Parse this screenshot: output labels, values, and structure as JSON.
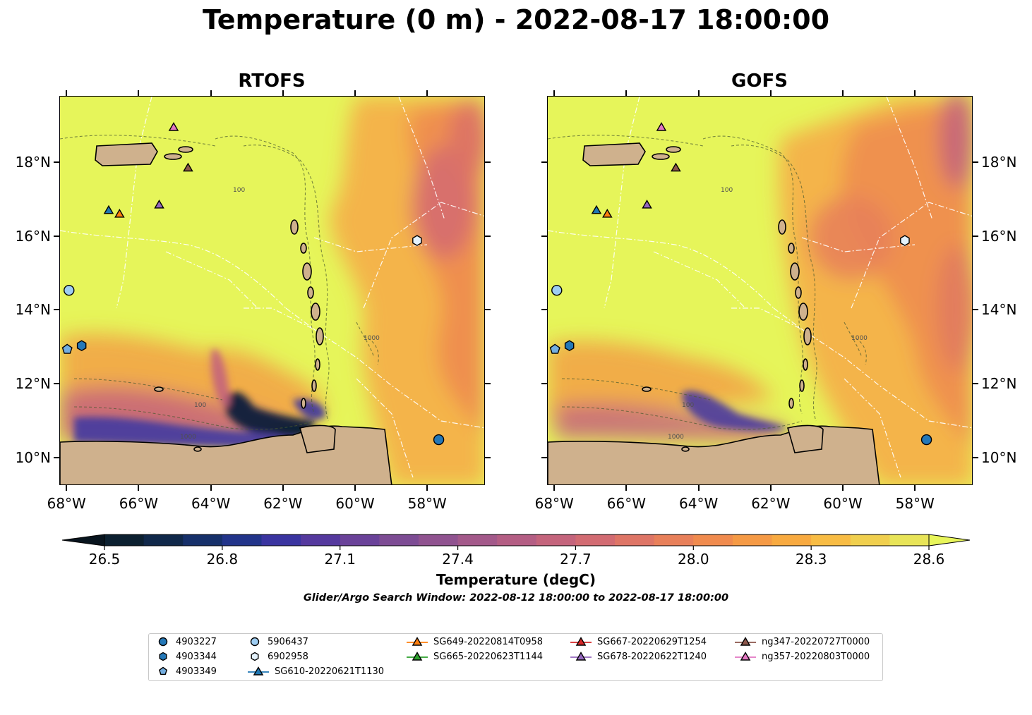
{
  "title": "Temperature (0 m) - 2022-08-17 18:00:00",
  "panels": [
    {
      "title": "RTOFS"
    },
    {
      "title": "GOFS"
    }
  ],
  "x_ticks": [
    "68°W",
    "66°W",
    "64°W",
    "62°W",
    "60°W",
    "58°W"
  ],
  "y_ticks": [
    "18°N",
    "16°N",
    "14°N",
    "12°N",
    "10°N"
  ],
  "contour_labels": [
    "100",
    "1000"
  ],
  "colorbar": {
    "label": "Temperature (degC)",
    "ticks": [
      "26.5",
      "26.8",
      "27.1",
      "27.4",
      "27.7",
      "28.0",
      "28.3",
      "28.6"
    ],
    "min": 26.5,
    "max": 28.6,
    "colors": [
      "#0c2030",
      "#10284a",
      "#16306a",
      "#22348a",
      "#3a34a0",
      "#55399e",
      "#6a4299",
      "#7d4c94",
      "#905390",
      "#a3598a",
      "#b45e84",
      "#c4647c",
      "#d26b72",
      "#de7566",
      "#e8805a",
      "#f08b4e",
      "#f59a45",
      "#f8aa40",
      "#f8bc44",
      "#f0cf4e",
      "#e8e458"
    ]
  },
  "subtitle": "Glider/Argo Search Window: 2022-08-12 18:00:00 to 2022-08-17 18:00:00",
  "legend": [
    {
      "label": "4903227",
      "marker": "circle",
      "color": "#2478b8"
    },
    {
      "label": "4903344",
      "marker": "hexagon",
      "color": "#2478b8"
    },
    {
      "label": "4903349",
      "marker": "pentagon",
      "color": "#74aee0"
    },
    {
      "label": "5906437",
      "marker": "circle",
      "color": "#9ecdf2"
    },
    {
      "label": "6902958",
      "marker": "hexagon",
      "color": "#e4f2fc"
    },
    {
      "label": "SG610-20220621T1130",
      "marker": "triangle-line",
      "color": "#1f77b4"
    },
    {
      "label": "SG649-20220814T0958",
      "marker": "triangle-line",
      "color": "#ff7f0e"
    },
    {
      "label": "SG665-20220623T1144",
      "marker": "triangle-line",
      "color": "#2ca02c"
    },
    {
      "label": "SG667-20220629T1254",
      "marker": "triangle-line",
      "color": "#d62728"
    },
    {
      "label": "SG678-20220622T1240",
      "marker": "triangle-line",
      "color": "#9467bd"
    },
    {
      "label": "ng347-20220727T0000",
      "marker": "triangle-line",
      "color": "#8c564b"
    },
    {
      "label": "ng357-20220803T0000",
      "marker": "triangle-line",
      "color": "#e377c2"
    }
  ],
  "observations": [
    {
      "id": "4903227",
      "lon": -57.7,
      "lat": 10.5
    },
    {
      "id": "4903344",
      "lon": -67.6,
      "lat": 13.05
    },
    {
      "id": "4903349",
      "lon": -68.0,
      "lat": 12.95
    },
    {
      "id": "5906437",
      "lon": -67.95,
      "lat": 14.55
    },
    {
      "id": "6902958",
      "lon": -58.3,
      "lat": 15.9
    },
    {
      "id": "SG610-20220621T1130",
      "lon": -66.85,
      "lat": 16.7
    },
    {
      "id": "SG649-20220814T0958",
      "lon": -66.55,
      "lat": 16.6
    },
    {
      "id": "SG678-20220622T1240",
      "lon": -65.45,
      "lat": 16.85
    },
    {
      "id": "ng347-20220727T0000",
      "lon": -64.65,
      "lat": 17.85
    },
    {
      "id": "ng357-20220803T0000",
      "lon": -65.05,
      "lat": 18.95
    }
  ]
}
